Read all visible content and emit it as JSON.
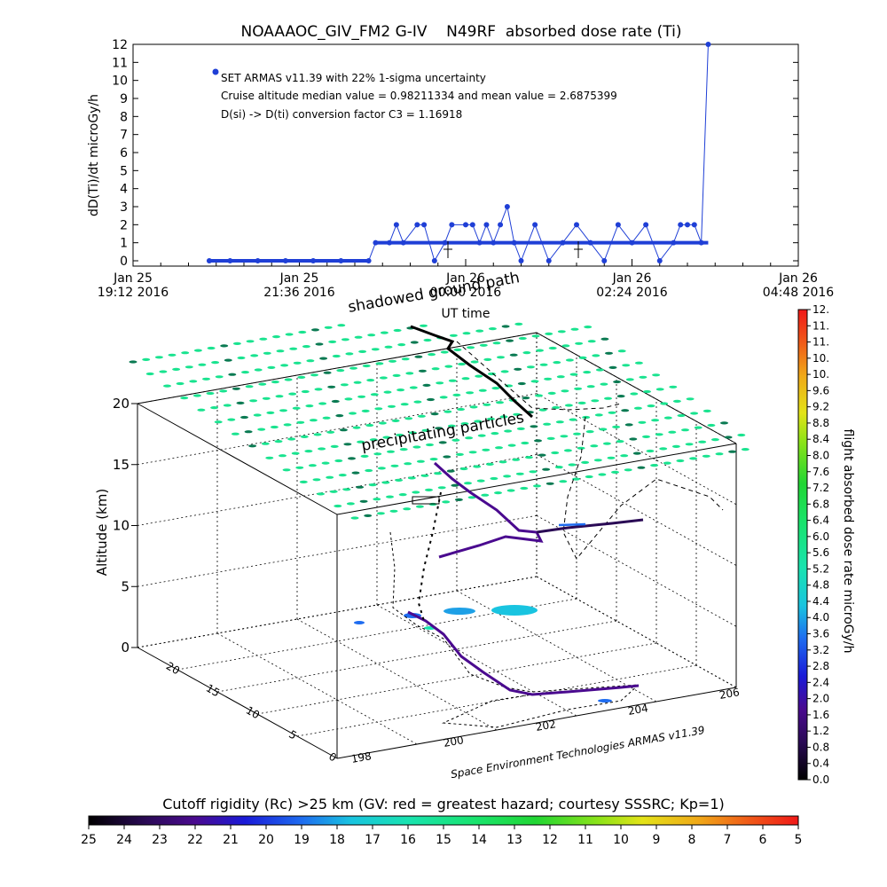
{
  "colors": {
    "series_blue": "#1f3fd6",
    "track_black": "#000000",
    "grid_green": "#19e38f",
    "grid_dark": "#0a7a52",
    "purple": "#3d0a78",
    "cyan": "#19c4e0"
  },
  "chart_data": [
    {
      "type": "line",
      "title": "NOAAAOC_GIV_FM2 G-IV    N49RF  absorbed dose rate (Ti)",
      "xlabel": "UT time",
      "ylabel": "dD(Ti)/dt microGy/h",
      "ylim": [
        0,
        12
      ],
      "y_ticks": [
        "0",
        "1",
        "2",
        "3",
        "4",
        "5",
        "6",
        "7",
        "8",
        "9",
        "10",
        "11",
        "12"
      ],
      "x_ticks": [
        {
          "line1": "Jan 25",
          "line2": "19:12 2016"
        },
        {
          "line1": "Jan 25",
          "line2": "21:36 2016"
        },
        {
          "line1": "Jan 26",
          "line2": "00:00 2016"
        },
        {
          "line1": "Jan 26",
          "line2": "02:24 2016"
        },
        {
          "line1": "Jan 26",
          "line2": "04:48 2016"
        }
      ],
      "annotations": [
        "SET ARMAS v11.39 with 22% 1-sigma uncertainty",
        "Cruise altitude median value = 0.98211334 and mean value = 2.6875399",
        "D(si) -> D(ti) conversion factor C3 = 1.16918"
      ],
      "series": [
        {
          "name": "SET ARMAS v11.39",
          "x_hours_ut": [
            20.3,
            20.6,
            21.0,
            21.4,
            21.8,
            22.2,
            22.6,
            22.7,
            22.9,
            23.0,
            23.1,
            23.3,
            23.4,
            23.55,
            23.7,
            23.8,
            24.0,
            24.1,
            24.2,
            24.3,
            24.4,
            24.5,
            24.6,
            24.7,
            24.8,
            25.0,
            25.2,
            25.4,
            25.6,
            25.8,
            26.0,
            26.2,
            26.4,
            26.6,
            26.8,
            27.0,
            27.1,
            27.2,
            27.3,
            27.4,
            27.5
          ],
          "y_values": [
            0,
            0,
            0,
            0,
            0,
            0,
            0,
            1,
            1,
            2,
            1,
            2,
            2,
            0,
            1,
            2,
            2,
            2,
            1,
            2,
            1,
            2,
            3,
            1,
            0,
            2,
            0,
            1,
            2,
            1,
            0,
            2,
            1,
            2,
            0,
            1,
            2,
            2,
            2,
            1,
            12
          ]
        }
      ]
    },
    {
      "type": "scatter",
      "title": "",
      "zlabel": "Altitude (km)",
      "z_ticks": [
        "0",
        "5",
        "10",
        "15",
        "20"
      ],
      "lat_ticks": [
        "0",
        "5",
        "10",
        "15",
        "20"
      ],
      "lon_ticks": [
        "198",
        "200",
        "202",
        "204",
        "206"
      ],
      "floating_labels": [
        "shadowed ground path",
        "precipitating particles"
      ],
      "footer_credit": "Space Environment Technologies ARMAS v11.39",
      "track_altitude_km": [
        12.8,
        13.5,
        13.4,
        12.9,
        12.3,
        11.8,
        11.4,
        11.0,
        10.5,
        10.1,
        9.8,
        9.5,
        9.2,
        8.8,
        8.4,
        7.9,
        7.0,
        6.0,
        5.0,
        4.0,
        3.0,
        2.0,
        1.0
      ]
    },
    {
      "type": "heatmap",
      "title": "flight absorbed dose rate microGy/h",
      "colorbar_ticks": [
        "0.0",
        "0.4",
        "0.8",
        "1.2",
        "1.6",
        "2.0",
        "2.4",
        "2.8",
        "3.2",
        "3.6",
        "4.0",
        "4.4",
        "4.8",
        "5.2",
        "5.6",
        "6.0",
        "6.4",
        "6.8",
        "7.2",
        "7.6",
        "8.0",
        "8.4",
        "8.8",
        "9.2",
        "9.6",
        "10.",
        "10.",
        "11.",
        "11.",
        "12."
      ],
      "range": [
        0,
        12
      ]
    },
    {
      "type": "heatmap",
      "title": "Cutoff rigidity (Rc) >25 km (GV: red = greatest hazard; courtesy SSSRC; Kp=1)",
      "colorbar_ticks": [
        "25",
        "24",
        "23",
        "22",
        "21",
        "20",
        "19",
        "18",
        "17",
        "16",
        "15",
        "14",
        "13",
        "12",
        "11",
        "10",
        "9",
        "8",
        "7",
        "6",
        "5"
      ],
      "range": [
        25,
        5
      ]
    }
  ]
}
